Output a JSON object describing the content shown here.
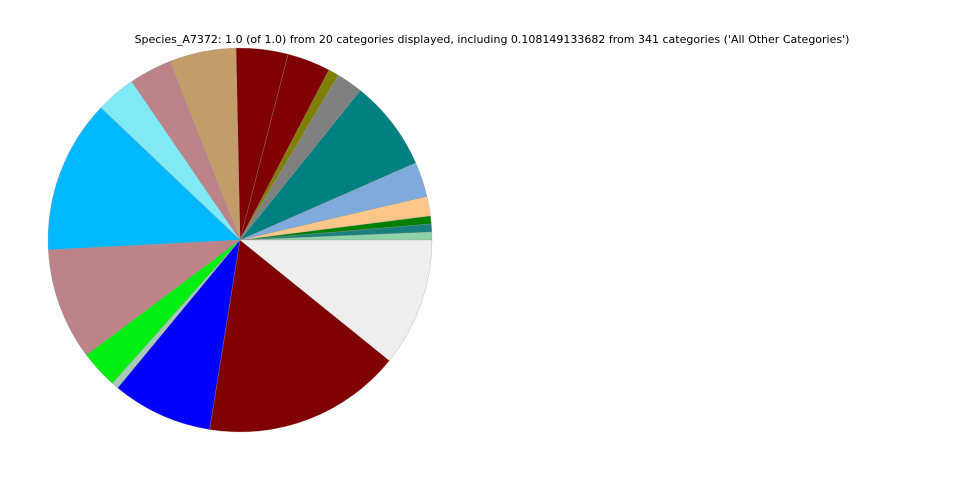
{
  "chart_data": {
    "type": "pie",
    "title": "Species_A7372: 1.0 (of 1.0) from 20 categories displayed, including 0.108149133682 from 341 categories ('All Other Categories')",
    "values": [
      0.0067,
      0.0067,
      0.0067,
      0.0164,
      0.0294,
      0.0764,
      0.0222,
      0.0089,
      0.0364,
      0.0436,
      0.0561,
      0.0361,
      0.0336,
      0.1292,
      0.0942,
      0.0319,
      0.0058,
      0.0847,
      0.1672,
      0.108149133682
    ],
    "colors": [
      "#8fd3a8",
      "#1a7f7f",
      "#008000",
      "#ffc68a",
      "#7faadc",
      "#008080",
      "#808080",
      "#808000",
      "#800000",
      "#800000",
      "#c49c6a",
      "#bc8389",
      "#7fe9f5",
      "#00b8ff",
      "#bc8389",
      "#00ee10",
      "#a8c8b8",
      "#0000ff",
      "#800000",
      "#eeeeee"
    ],
    "start_angle": 0,
    "counterclock": true
  }
}
